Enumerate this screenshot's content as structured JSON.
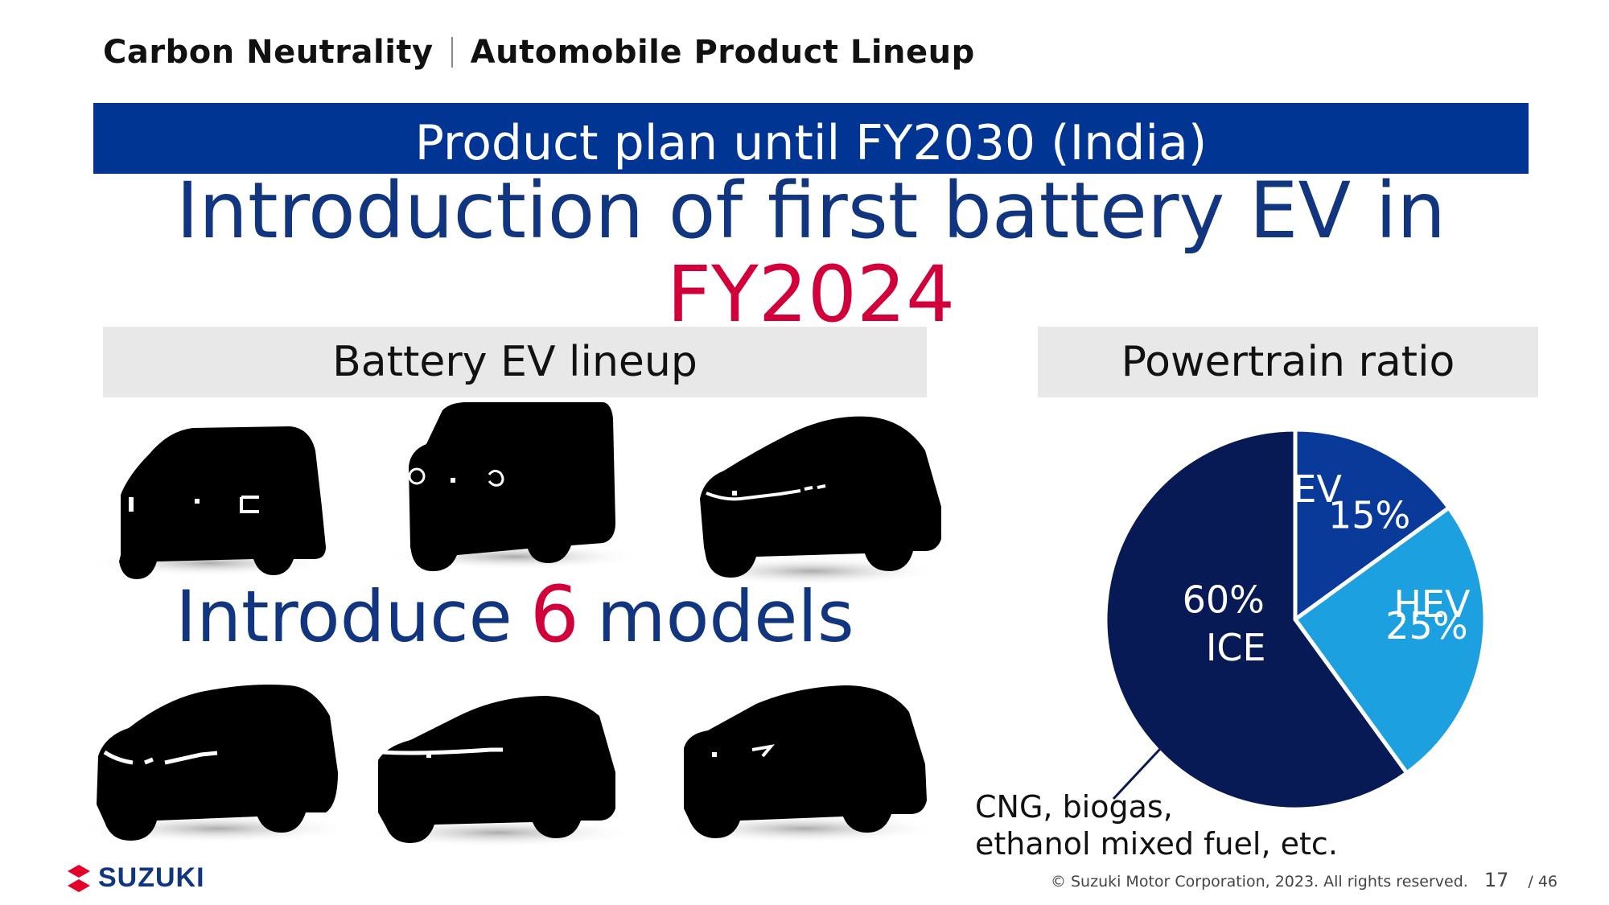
{
  "header": {
    "section": "Carbon Neutrality",
    "title": "Automobile Product Lineup"
  },
  "banner": "Product plan until FY2030 (India)",
  "headline": {
    "line1": "Introduction of first battery EV in",
    "line2": "FY2024"
  },
  "left_panel": {
    "title": "Battery EV lineup"
  },
  "right_panel": {
    "title": "Powertrain ratio"
  },
  "introduce": {
    "prefix": "Introduce",
    "count": "6",
    "suffix": "models"
  },
  "ice_note": {
    "line1": "CNG, biogas,",
    "line2": "ethanol mixed fuel, etc."
  },
  "footer": {
    "copyright": "© Suzuki Motor Corporation, 2023. All rights reserved.",
    "page": "17",
    "total": "/ 46"
  },
  "logo": {
    "text": "SUZUKI"
  },
  "colors": {
    "brand_blue": "#003594",
    "accent_red": "#d2003a",
    "bev": "#0a3a99",
    "hev": "#1da0e0",
    "ice": "#071a55"
  },
  "chart_data": {
    "type": "pie",
    "title": "Powertrain ratio",
    "slices": [
      {
        "label": "BEV",
        "value": 15,
        "text": "15%",
        "color": "#0a3a99"
      },
      {
        "label": "HEV",
        "value": 25,
        "text": "25%",
        "color": "#1da0e0"
      },
      {
        "label": "ICE",
        "value": 60,
        "text": "60%",
        "color": "#071a55"
      }
    ]
  }
}
